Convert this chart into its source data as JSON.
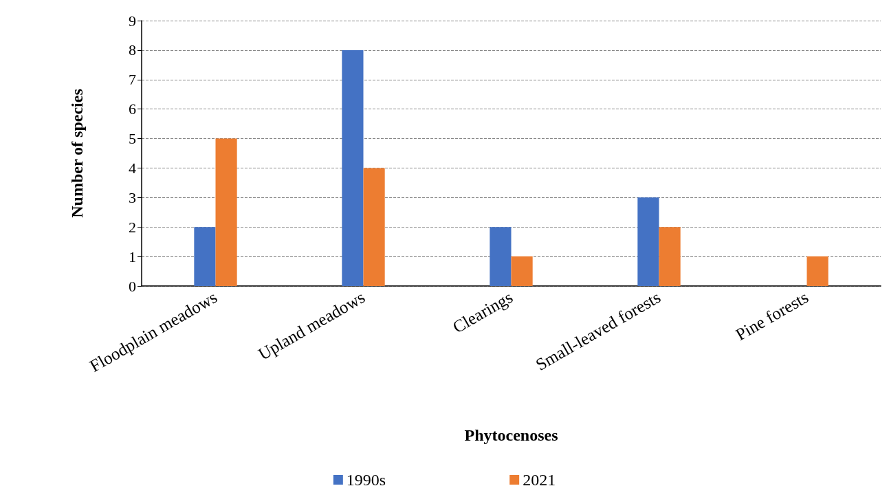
{
  "chart_data": {
    "type": "bar",
    "xlabel": "Phytocenoses",
    "ylabel": "Number of species",
    "categories": [
      "Floodplain meadows",
      "Upland meadows",
      "Clearings",
      "Small-leaved forests",
      "Pine forests"
    ],
    "series": [
      {
        "name": "1990s",
        "color": "#4472c4",
        "values": [
          2,
          8,
          2,
          3,
          0
        ]
      },
      {
        "name": "2021",
        "color": "#ed7d31",
        "values": [
          5,
          4,
          1,
          2,
          1
        ]
      }
    ],
    "ylim": [
      0,
      9
    ],
    "yticks": [
      0,
      1,
      2,
      3,
      4,
      5,
      6,
      7,
      8,
      9
    ],
    "grid": "y",
    "legend": "bottom"
  }
}
